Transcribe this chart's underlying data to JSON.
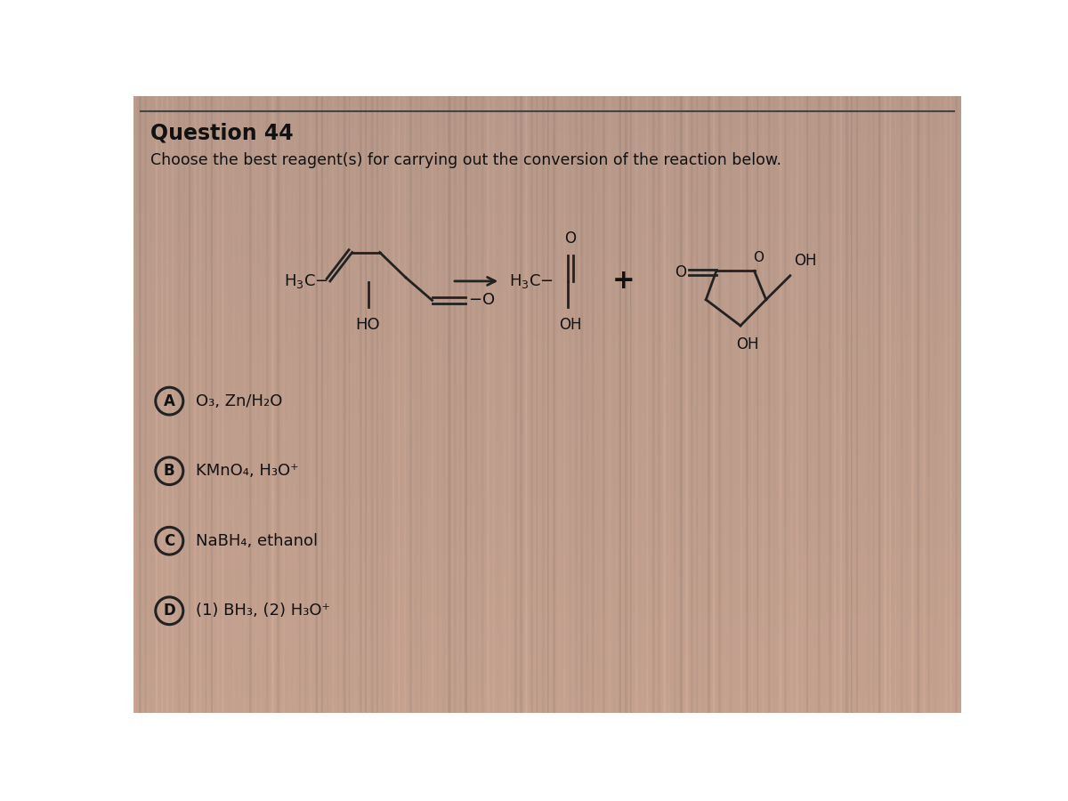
{
  "title": "Question 44",
  "subtitle": "Choose the best reagent(s) for carrying out the conversion of the reaction below.",
  "bg_color_top": "#c8a090",
  "bg_color_mid": "#b09888",
  "bg_color_bot": "#a09080",
  "text_color": "#111111",
  "line_color": "#222222",
  "options": [
    {
      "label": "A",
      "text": "O₃, Zn/H₂O"
    },
    {
      "label": "B",
      "text": "KMnO₄, H₃O⁺"
    },
    {
      "label": "C",
      "text": "NaBH₄, ethanol"
    },
    {
      "label": "D",
      "text": "(1) BH₃, (2) H₃O⁺"
    }
  ],
  "stripe_color": "#c0a898",
  "stripe_alpha": 0.18
}
